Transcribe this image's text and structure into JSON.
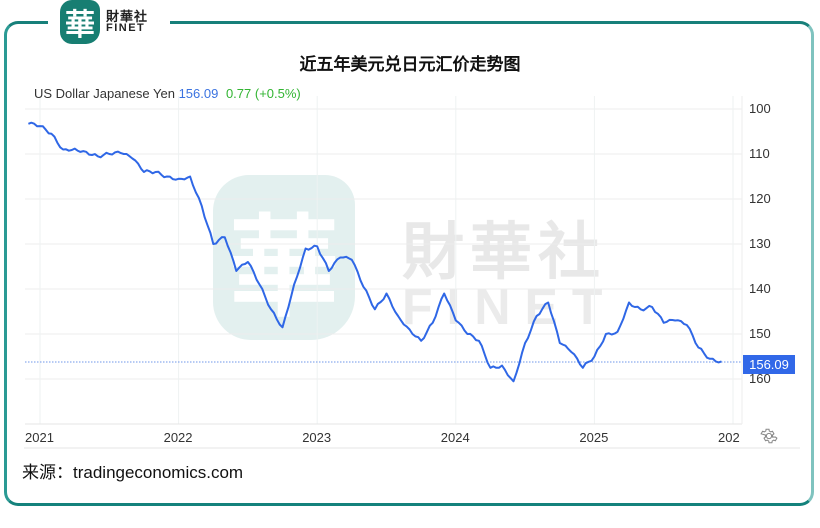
{
  "brand": {
    "logo_glyph": "華",
    "name_cn": "財華社",
    "name_en": "FINET",
    "frame_color": "#17807a"
  },
  "title": "近五年美元兑日元汇价走势图",
  "legend": {
    "name": "US Dollar Japanese Yen",
    "value": "156.09",
    "change": "0.77 (+0.5%)",
    "value_color": "#3b73e0",
    "change_color": "#33b533"
  },
  "last_price_tag": "156.09",
  "source": "来源：tradingeconomics.com",
  "watermark": {
    "cn": "財華社",
    "en": "FINET",
    "glyph": "華"
  },
  "icons": {
    "settings": "gear-icon"
  },
  "chart_data": {
    "type": "line",
    "title": "近五年美元兑日元汇价走势图",
    "series": [
      {
        "name": "US Dollar Japanese Yen",
        "color": "#2f67e6",
        "x": [
          "2020-12",
          "2021-01",
          "2021-02",
          "2021-03",
          "2021-04",
          "2021-05",
          "2021-06",
          "2021-07",
          "2021-08",
          "2021-09",
          "2021-10",
          "2021-11",
          "2021-12",
          "2022-01",
          "2022-02",
          "2022-03",
          "2022-04",
          "2022-05",
          "2022-06",
          "2022-07",
          "2022-08",
          "2022-09",
          "2022-10",
          "2022-11",
          "2022-12",
          "2023-01",
          "2023-02",
          "2023-03",
          "2023-04",
          "2023-05",
          "2023-06",
          "2023-07",
          "2023-08",
          "2023-09",
          "2023-10",
          "2023-11",
          "2023-12",
          "2024-01",
          "2024-02",
          "2024-03",
          "2024-04",
          "2024-05",
          "2024-06",
          "2024-07",
          "2024-08",
          "2024-09",
          "2024-10",
          "2024-11",
          "2024-12",
          "2025-01",
          "2025-02",
          "2025-03",
          "2025-04",
          "2025-05",
          "2025-06",
          "2025-07",
          "2025-08",
          "2025-09",
          "2025-10",
          "2025-11",
          "2025-12"
        ],
        "values": [
          103.3,
          103.8,
          105.5,
          109.0,
          108.8,
          109.5,
          110.5,
          110.0,
          109.8,
          111.0,
          114.0,
          114.0,
          115.0,
          115.5,
          115.0,
          121.5,
          130.0,
          128.5,
          136.0,
          134.0,
          139.0,
          144.5,
          148.5,
          139.0,
          131.0,
          130.5,
          136.0,
          133.0,
          133.5,
          139.5,
          144.5,
          141.0,
          146.0,
          149.0,
          151.5,
          147.5,
          141.0,
          147.0,
          150.0,
          151.5,
          157.5,
          157.0,
          160.5,
          152.0,
          146.0,
          143.0,
          152.0,
          154.0,
          157.5,
          155.0,
          150.0,
          149.5,
          143.0,
          144.5,
          144.0,
          147.5,
          147.0,
          148.0,
          153.0,
          155.5,
          156.09
        ]
      }
    ],
    "xlabel": "",
    "ylabel": "",
    "x_tick_labels": [
      "2021",
      "2022",
      "2023",
      "2024",
      "2025",
      "202"
    ],
    "y_tick_labels": [
      "100",
      "110",
      "120",
      "130",
      "140",
      "150",
      "160"
    ],
    "ylim": [
      100,
      160
    ],
    "y_inverted": true,
    "last_value": 156.09,
    "last_value_line": "dotted",
    "grid": true,
    "legend_position": "top-left"
  }
}
